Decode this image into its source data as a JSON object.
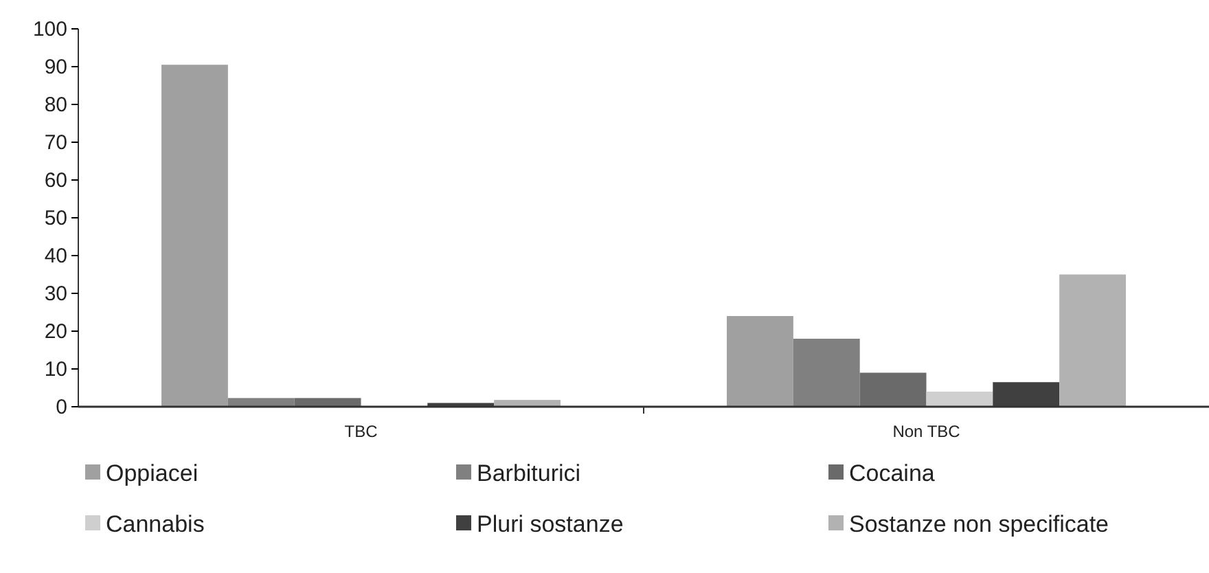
{
  "chart_data": {
    "type": "bar",
    "categories": [
      "TBC",
      "Non TBC"
    ],
    "series": [
      {
        "name": "Oppiacei",
        "color": "#a0a0a0",
        "values": [
          90.5,
          24
        ]
      },
      {
        "name": "Barbiturici",
        "color": "#808080",
        "values": [
          2.3,
          18
        ]
      },
      {
        "name": "Cocaina",
        "color": "#6a6a6a",
        "values": [
          2.3,
          9
        ]
      },
      {
        "name": "Cannabis",
        "color": "#cfcfcf",
        "values": [
          0,
          4
        ]
      },
      {
        "name": "Pluri sostanze",
        "color": "#404040",
        "values": [
          1,
          6.5
        ]
      },
      {
        "name": "Sostanze non specificate",
        "color": "#b2b2b2",
        "values": [
          1.8,
          35
        ]
      }
    ],
    "ylim": [
      0,
      100
    ],
    "yticks": [
      0,
      10,
      20,
      30,
      40,
      50,
      60,
      70,
      80,
      90,
      100
    ],
    "grid": false,
    "legend": "bottom"
  }
}
